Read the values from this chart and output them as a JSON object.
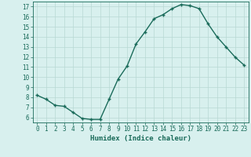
{
  "x": [
    0,
    1,
    2,
    3,
    4,
    5,
    6,
    7,
    8,
    9,
    10,
    11,
    12,
    13,
    14,
    15,
    16,
    17,
    18,
    19,
    20,
    21,
    22,
    23
  ],
  "y": [
    8.2,
    7.8,
    7.2,
    7.1,
    6.5,
    5.9,
    5.8,
    5.8,
    7.8,
    9.8,
    11.1,
    13.3,
    14.5,
    15.8,
    16.2,
    16.8,
    17.2,
    17.1,
    16.8,
    15.3,
    14.0,
    13.0,
    12.0,
    11.2
  ],
  "line_color": "#1a6b5a",
  "marker": "+",
  "marker_size": 3.5,
  "line_width": 1.0,
  "marker_edge_width": 1.0,
  "xlabel": "Humidex (Indice chaleur)",
  "xlim": [
    -0.5,
    23.5
  ],
  "ylim": [
    5.5,
    17.5
  ],
  "yticks": [
    6,
    7,
    8,
    9,
    10,
    11,
    12,
    13,
    14,
    15,
    16,
    17
  ],
  "xticks": [
    0,
    1,
    2,
    3,
    4,
    5,
    6,
    7,
    8,
    9,
    10,
    11,
    12,
    13,
    14,
    15,
    16,
    17,
    18,
    19,
    20,
    21,
    22,
    23
  ],
  "xtick_labels": [
    "0",
    "1",
    "2",
    "3",
    "4",
    "5",
    "6",
    "7",
    "8",
    "9",
    "10",
    "11",
    "12",
    "13",
    "14",
    "15",
    "16",
    "17",
    "18",
    "19",
    "20",
    "21",
    "22",
    "23"
  ],
  "bg_color": "#d8f0ee",
  "grid_color": "#b8d8d4",
  "tick_label_fontsize": 5.5,
  "xlabel_fontsize": 6.5,
  "xlabel_color": "#1a6b5a",
  "tick_color": "#1a6b5a"
}
